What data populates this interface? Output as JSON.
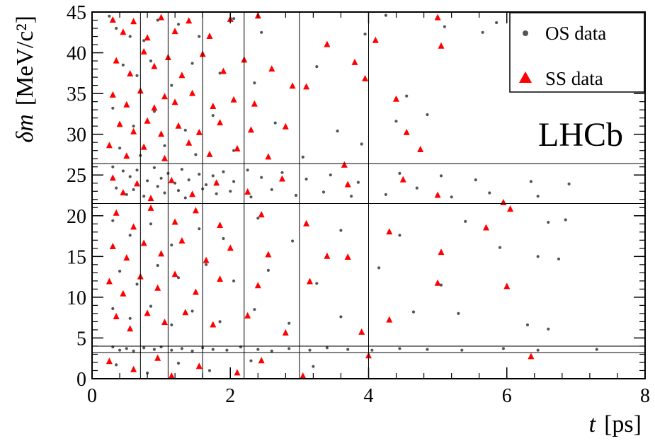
{
  "chart_data": {
    "type": "scatter",
    "title": "",
    "x_axis": {
      "label_var": "t",
      "label_unit": "[ps]",
      "range": [
        0,
        8
      ],
      "ticks": [
        "0",
        "2",
        "4",
        "6",
        "8"
      ]
    },
    "y_axis": {
      "label_var": "δm",
      "label_unit": "[MeV/c²]",
      "range": [
        0,
        45
      ],
      "ticks": [
        "0",
        "5",
        "10",
        "15",
        "20",
        "25",
        "30",
        "35",
        "40",
        "45"
      ]
    },
    "bin_lines": {
      "t": [
        0.7,
        1.1,
        1.6,
        2.2,
        3.0,
        4.0
      ],
      "delta_m": [
        3.2,
        4.0,
        21.5,
        26.4
      ]
    },
    "legend": {
      "position": "top-right",
      "entries": [
        {
          "label": "OS data",
          "marker": "circle",
          "color": "#555555"
        },
        {
          "label": "SS data",
          "marker": "triangle",
          "color": "#ff0000"
        }
      ]
    },
    "watermark": "LHCb",
    "series": [
      {
        "name": "OS data",
        "color": "#555555",
        "points": [
          [
            0.25,
            44.5
          ],
          [
            0.35,
            43.0
          ],
          [
            0.55,
            42.0
          ],
          [
            0.75,
            41.5
          ],
          [
            0.95,
            44.0
          ],
          [
            1.25,
            43.5
          ],
          [
            1.55,
            42.0
          ],
          [
            2.05,
            44.2
          ],
          [
            2.45,
            42.5
          ],
          [
            3.95,
            42.3
          ],
          [
            4.25,
            44.6
          ],
          [
            5.1,
            43.2
          ],
          [
            5.65,
            42.5
          ],
          [
            5.85,
            43.7
          ],
          [
            0.45,
            38.5
          ],
          [
            0.65,
            37.2
          ],
          [
            0.85,
            39.0
          ],
          [
            1.15,
            36.0
          ],
          [
            1.45,
            38.7
          ],
          [
            1.85,
            37.5
          ],
          [
            2.35,
            36.3
          ],
          [
            3.25,
            38.3
          ],
          [
            4.55,
            34.7
          ],
          [
            4.85,
            32.4
          ],
          [
            0.3,
            33.2
          ],
          [
            0.6,
            31.0
          ],
          [
            0.9,
            32.8
          ],
          [
            1.35,
            30.5
          ],
          [
            1.75,
            32.3
          ],
          [
            2.65,
            31.4
          ],
          [
            3.55,
            30.4
          ],
          [
            4.4,
            31.6
          ],
          [
            0.4,
            28.3
          ],
          [
            0.7,
            27.4
          ],
          [
            1.05,
            28.6
          ],
          [
            1.5,
            27.5
          ],
          [
            2.05,
            28.0
          ],
          [
            3.05,
            27.2
          ],
          [
            3.9,
            28.8
          ],
          [
            0.3,
            26.0
          ],
          [
            0.45,
            25.5
          ],
          [
            0.55,
            24.8
          ],
          [
            0.65,
            25.6
          ],
          [
            0.8,
            24.3
          ],
          [
            0.9,
            25.9
          ],
          [
            1.0,
            24.6
          ],
          [
            1.1,
            25.2
          ],
          [
            1.2,
            24.0
          ],
          [
            1.3,
            25.7
          ],
          [
            1.4,
            24.4
          ],
          [
            1.55,
            25.1
          ],
          [
            1.65,
            23.8
          ],
          [
            1.75,
            24.9
          ],
          [
            1.9,
            25.4
          ],
          [
            2.05,
            24.2
          ],
          [
            2.25,
            25.6
          ],
          [
            2.45,
            24.7
          ],
          [
            2.75,
            25.3
          ],
          [
            3.1,
            24.5
          ],
          [
            3.45,
            25.0
          ],
          [
            3.85,
            24.1
          ],
          [
            4.45,
            25.2
          ],
          [
            5.05,
            24.9
          ],
          [
            5.55,
            24.4
          ],
          [
            6.35,
            24.2
          ],
          [
            6.9,
            23.9
          ],
          [
            0.35,
            23.4
          ],
          [
            0.5,
            22.6
          ],
          [
            0.6,
            23.2
          ],
          [
            0.75,
            22.4
          ],
          [
            0.95,
            23.6
          ],
          [
            1.05,
            22.8
          ],
          [
            1.25,
            23.1
          ],
          [
            1.35,
            22.2
          ],
          [
            1.6,
            23.3
          ],
          [
            1.8,
            22.7
          ],
          [
            2.0,
            23.0
          ],
          [
            2.3,
            22.3
          ],
          [
            2.6,
            23.2
          ],
          [
            2.95,
            22.5
          ],
          [
            3.35,
            22.9
          ],
          [
            3.75,
            22.4
          ],
          [
            4.25,
            22.6
          ],
          [
            4.7,
            23.4
          ],
          [
            5.2,
            22.3
          ],
          [
            5.75,
            22.8
          ],
          [
            6.45,
            22.4
          ],
          [
            0.3,
            19.4
          ],
          [
            0.55,
            17.6
          ],
          [
            0.85,
            19.0
          ],
          [
            1.15,
            16.4
          ],
          [
            1.55,
            18.4
          ],
          [
            1.9,
            17.2
          ],
          [
            2.4,
            19.7
          ],
          [
            2.9,
            16.9
          ],
          [
            3.6,
            18.2
          ],
          [
            4.45,
            17.6
          ],
          [
            5.4,
            19.3
          ],
          [
            6.6,
            19.2
          ],
          [
            6.85,
            19.5
          ],
          [
            0.4,
            13.2
          ],
          [
            0.65,
            11.6
          ],
          [
            0.95,
            13.9
          ],
          [
            1.25,
            12.4
          ],
          [
            1.65,
            14.0
          ],
          [
            2.05,
            12.0
          ],
          [
            2.55,
            13.3
          ],
          [
            3.25,
            11.7
          ],
          [
            4.15,
            13.6
          ],
          [
            5.05,
            11.5
          ],
          [
            5.9,
            16.1
          ],
          [
            6.45,
            15.0
          ],
          [
            6.75,
            14.7
          ],
          [
            0.3,
            8.6
          ],
          [
            0.55,
            7.4
          ],
          [
            0.85,
            8.9
          ],
          [
            1.15,
            6.6
          ],
          [
            1.45,
            8.3
          ],
          [
            1.85,
            7.0
          ],
          [
            2.35,
            8.5
          ],
          [
            2.85,
            6.8
          ],
          [
            3.6,
            7.6
          ],
          [
            4.65,
            8.2
          ],
          [
            5.3,
            8.0
          ],
          [
            6.3,
            6.6
          ],
          [
            6.6,
            6.1
          ],
          [
            0.3,
            3.9
          ],
          [
            0.4,
            3.5
          ],
          [
            0.5,
            3.7
          ],
          [
            0.6,
            3.4
          ],
          [
            0.75,
            3.8
          ],
          [
            0.9,
            3.6
          ],
          [
            1.0,
            3.9
          ],
          [
            1.15,
            3.5
          ],
          [
            1.3,
            3.7
          ],
          [
            1.45,
            3.4
          ],
          [
            1.6,
            3.8
          ],
          [
            1.75,
            3.6
          ],
          [
            1.95,
            3.5
          ],
          [
            2.15,
            3.9
          ],
          [
            2.4,
            3.6
          ],
          [
            2.6,
            3.4
          ],
          [
            2.85,
            3.7
          ],
          [
            3.15,
            3.5
          ],
          [
            3.4,
            3.8
          ],
          [
            3.7,
            3.6
          ],
          [
            4.05,
            3.5
          ],
          [
            4.45,
            3.7
          ],
          [
            4.85,
            3.6
          ],
          [
            5.35,
            3.5
          ],
          [
            5.95,
            3.7
          ],
          [
            6.45,
            3.5
          ],
          [
            7.3,
            3.6
          ],
          [
            0.35,
            1.7
          ],
          [
            0.8,
            0.7
          ],
          [
            1.25,
            1.9
          ],
          [
            1.7,
            1.0
          ],
          [
            2.3,
            2.2
          ],
          [
            3.2,
            1.5
          ]
        ]
      },
      {
        "name": "SS data",
        "color": "#ff0000",
        "points": [
          [
            0.3,
            44.0
          ],
          [
            0.45,
            42.5
          ],
          [
            0.6,
            43.8
          ],
          [
            0.8,
            41.8
          ],
          [
            1.0,
            44.3
          ],
          [
            1.2,
            42.6
          ],
          [
            1.4,
            43.9
          ],
          [
            1.7,
            42.0
          ],
          [
            2.0,
            44.1
          ],
          [
            2.4,
            44.5
          ],
          [
            3.4,
            41.0
          ],
          [
            4.1,
            41.5
          ],
          [
            5.0,
            44.3
          ],
          [
            5.05,
            40.8
          ],
          [
            0.35,
            39.0
          ],
          [
            0.55,
            37.4
          ],
          [
            0.75,
            40.1
          ],
          [
            0.9,
            38.3
          ],
          [
            1.1,
            39.4
          ],
          [
            1.3,
            37.2
          ],
          [
            1.6,
            39.8
          ],
          [
            1.9,
            37.7
          ],
          [
            2.2,
            39.1
          ],
          [
            2.6,
            38.0
          ],
          [
            3.8,
            38.8
          ],
          [
            3.95,
            36.8
          ],
          [
            0.3,
            34.8
          ],
          [
            0.5,
            33.6
          ],
          [
            0.7,
            35.3
          ],
          [
            0.9,
            33.2
          ],
          [
            1.05,
            34.6
          ],
          [
            1.2,
            33.9
          ],
          [
            1.45,
            35.0
          ],
          [
            1.75,
            33.4
          ],
          [
            2.05,
            34.2
          ],
          [
            2.35,
            33.7
          ],
          [
            2.9,
            35.9
          ],
          [
            3.1,
            35.8
          ],
          [
            4.4,
            34.3
          ],
          [
            0.4,
            31.2
          ],
          [
            0.6,
            30.3
          ],
          [
            0.8,
            31.6
          ],
          [
            1.0,
            30.0
          ],
          [
            1.25,
            31.0
          ],
          [
            1.55,
            30.2
          ],
          [
            1.85,
            31.4
          ],
          [
            2.3,
            30.5
          ],
          [
            2.8,
            30.9
          ],
          [
            4.55,
            30.2
          ],
          [
            0.25,
            28.6
          ],
          [
            0.5,
            27.3
          ],
          [
            0.75,
            28.4
          ],
          [
            1.05,
            27.0
          ],
          [
            1.4,
            28.9
          ],
          [
            1.7,
            27.5
          ],
          [
            2.1,
            28.2
          ],
          [
            2.55,
            27.2
          ],
          [
            3.65,
            26.2
          ],
          [
            4.75,
            28.1
          ],
          [
            0.3,
            24.6
          ],
          [
            0.45,
            22.8
          ],
          [
            0.65,
            23.9
          ],
          [
            0.85,
            22.1
          ],
          [
            1.15,
            24.3
          ],
          [
            1.45,
            22.6
          ],
          [
            1.8,
            24.0
          ],
          [
            2.25,
            22.9
          ],
          [
            2.75,
            24.5
          ],
          [
            3.7,
            23.8
          ],
          [
            4.5,
            24.4
          ],
          [
            0.35,
            20.3
          ],
          [
            0.6,
            18.6
          ],
          [
            0.85,
            20.9
          ],
          [
            1.2,
            19.2
          ],
          [
            1.5,
            20.6
          ],
          [
            1.85,
            18.8
          ],
          [
            2.45,
            20.1
          ],
          [
            3.1,
            19.0
          ],
          [
            4.3,
            18.0
          ],
          [
            5.0,
            22.5
          ],
          [
            5.95,
            21.6
          ],
          [
            6.05,
            20.8
          ],
          [
            5.7,
            18.5
          ],
          [
            0.3,
            16.2
          ],
          [
            0.5,
            14.8
          ],
          [
            0.75,
            16.6
          ],
          [
            1.0,
            15.3
          ],
          [
            1.3,
            16.9
          ],
          [
            1.65,
            14.5
          ],
          [
            2.0,
            16.0
          ],
          [
            2.55,
            15.2
          ],
          [
            3.4,
            15.0
          ],
          [
            3.7,
            14.9
          ],
          [
            5.05,
            15.5
          ],
          [
            0.25,
            11.9
          ],
          [
            0.45,
            10.4
          ],
          [
            0.7,
            12.5
          ],
          [
            0.95,
            11.1
          ],
          [
            1.2,
            12.8
          ],
          [
            1.5,
            10.6
          ],
          [
            1.85,
            12.2
          ],
          [
            2.4,
            11.4
          ],
          [
            3.15,
            11.9
          ],
          [
            5.0,
            11.7
          ],
          [
            6.0,
            11.3
          ],
          [
            0.35,
            7.6
          ],
          [
            0.55,
            6.1
          ],
          [
            0.8,
            8.0
          ],
          [
            1.05,
            6.9
          ],
          [
            1.35,
            8.1
          ],
          [
            1.75,
            6.6
          ],
          [
            2.25,
            7.7
          ],
          [
            2.8,
            5.6
          ],
          [
            3.9,
            5.7
          ],
          [
            4.3,
            7.2
          ],
          [
            0.25,
            2.1
          ],
          [
            0.6,
            1.1
          ],
          [
            0.95,
            2.5
          ],
          [
            1.15,
            0.3
          ],
          [
            1.55,
            1.5
          ],
          [
            2.1,
            0.7
          ],
          [
            2.45,
            2.2
          ],
          [
            3.05,
            0.3
          ],
          [
            4.0,
            2.8
          ],
          [
            6.35,
            2.7
          ]
        ]
      }
    ]
  }
}
